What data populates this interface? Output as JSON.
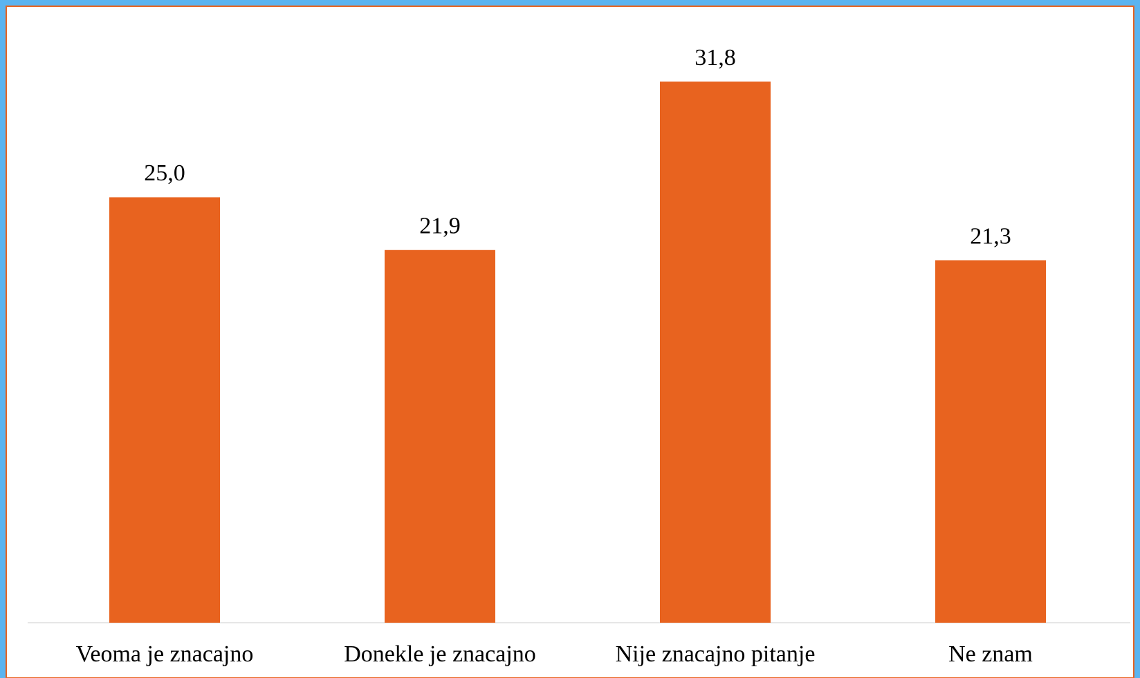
{
  "chart_data": {
    "type": "bar",
    "categories": [
      "Veoma je znacajno",
      "Donekle je znacajno",
      "Nije znacajno pitanje",
      "Ne znam"
    ],
    "values": [
      25.0,
      21.9,
      31.8,
      21.3
    ],
    "value_labels": [
      "25,0",
      "21,9",
      "31,8",
      "21,3"
    ],
    "color": "#e8631f"
  }
}
